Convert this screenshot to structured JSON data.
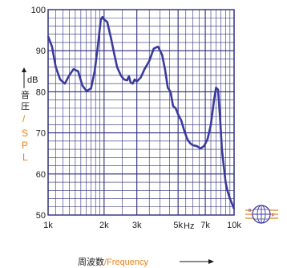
{
  "chart_data": {
    "type": "line",
    "title": "",
    "xscale": "log",
    "xlim": [
      1000,
      10000
    ],
    "ylim": [
      50,
      100
    ],
    "yticks": [
      50,
      60,
      70,
      80,
      90,
      100
    ],
    "xtick_labels": [
      {
        "value": 1000,
        "label": "1k"
      },
      {
        "value": 2000,
        "label": "2k"
      },
      {
        "value": 3000,
        "label": "3k"
      },
      {
        "value": 5000,
        "label": "5k"
      },
      {
        "value": 7000,
        "label": "7k"
      },
      {
        "value": 10000,
        "label": "10k"
      }
    ],
    "x_unit": "Hz",
    "y_unit": "dB",
    "ylabel_cn": "音圧",
    "ylabel_slash": "/",
    "ylabel_en": "SPL",
    "xlabel_cn": "周波数",
    "xlabel_slash": "/",
    "xlabel_en": "Frequency",
    "grid": true,
    "line_color": "#3a3a9c",
    "grid_color": "#2b2b7a",
    "accent_color": "#e8801a",
    "series": [
      {
        "x": [
          1000,
          1050,
          1100,
          1160,
          1230,
          1300,
          1370,
          1450,
          1530,
          1610,
          1700,
          1780,
          1850,
          1920,
          1960,
          2000,
          2080,
          2180,
          2260,
          2350,
          2460,
          2560,
          2660,
          2720,
          2780,
          2850,
          2920,
          3000,
          3150,
          3300,
          3500,
          3700,
          3900,
          4100,
          4250,
          4400,
          4550,
          4700,
          4850,
          5000,
          5200,
          5400,
          5600,
          5800,
          6000,
          6300,
          6600,
          6900,
          7200,
          7500,
          7800,
          8000,
          8200,
          8400,
          8600,
          8800,
          9000,
          9200,
          9500,
          9800,
          10000
        ],
        "y": [
          93.5,
          91,
          86,
          83,
          82,
          84,
          85.5,
          85,
          81.5,
          80.2,
          80.8,
          85,
          91,
          97.5,
          98.2,
          97.6,
          97,
          93,
          89.5,
          86,
          84,
          83,
          82.8,
          83.8,
          82.2,
          82,
          83,
          82.5,
          83.5,
          85.5,
          87.5,
          90.5,
          91,
          89,
          85.5,
          81,
          80,
          76.5,
          76,
          74.5,
          73,
          70.5,
          68.5,
          67.5,
          67,
          66.8,
          66.2,
          66.8,
          68.5,
          72,
          78,
          81,
          80.5,
          74,
          66,
          62,
          58,
          56,
          54,
          52.5,
          51.5
        ]
      }
    ]
  },
  "logo": {
    "icon": "globe-logo-icon",
    "letter_left": "B",
    "letter_right": "F",
    "stripe_color": "#e8801a",
    "globe_color": "#3a3a9c"
  }
}
